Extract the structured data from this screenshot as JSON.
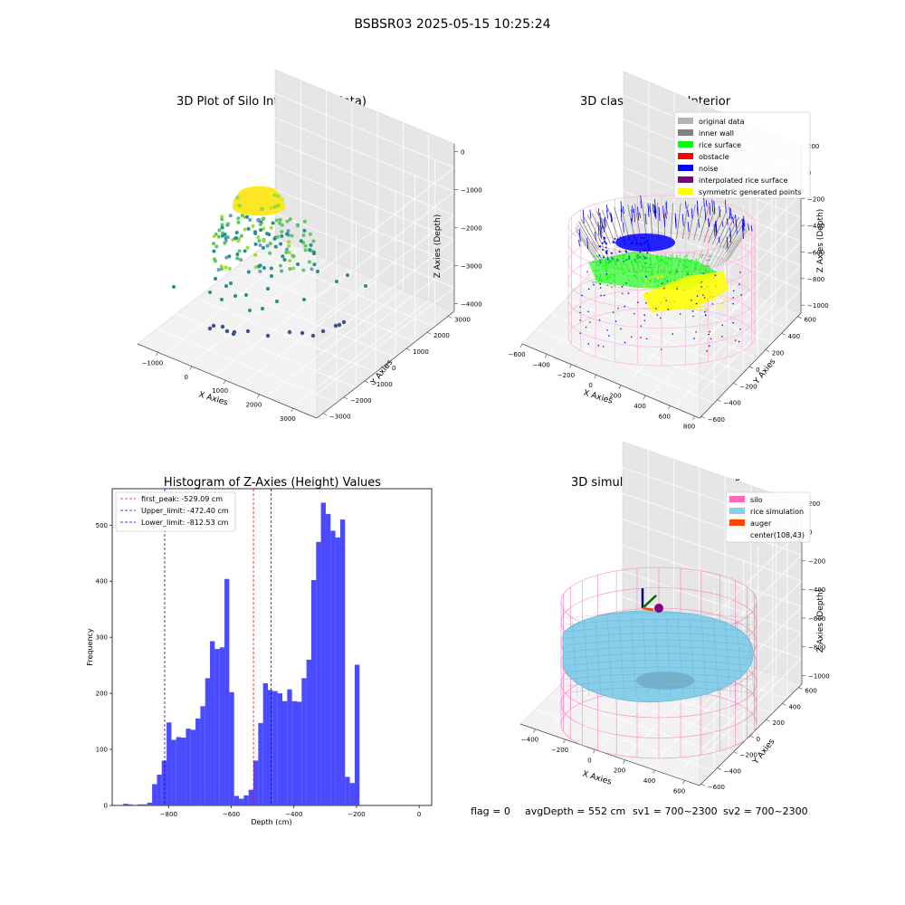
{
  "figure": {
    "suptitle": "BSBSR03 2025-05-15 10:25:24",
    "footer": {
      "flag": "flag = 0",
      "avg_depth": "avgDepth = 552 cm",
      "sv1": "sv1 = 700~2300",
      "sv2": "sv2 = 700~2300"
    }
  },
  "colors": {
    "viridis": [
      "#440154",
      "#3b528b",
      "#21918c",
      "#5ec962",
      "#a0da39",
      "#fde725"
    ],
    "original": "#b3b3b3",
    "inner_wall": "#808080",
    "rice_surface": "#00ff00",
    "obstacle": "#ff0000",
    "noise": "#0000ff",
    "interp": "#800080",
    "symmetric": "#ffff00",
    "silo": "#ff69b4",
    "rice_sim": "#87ceeb",
    "auger": "#ff4500",
    "hist_bar": "#4a4aff"
  },
  "chart_data": [
    {
      "type": "scatter3d",
      "title": "3D Plot of Silo Interior(row data)",
      "xlabel": "X Axies",
      "ylabel": "Y Axies",
      "zlabel": "Z Axies (Depth)",
      "xticks": [
        "−1000",
        "0",
        "1000",
        "2000",
        "3000"
      ],
      "yticks": [
        "−3000",
        "−2000",
        "−1000",
        "0",
        "1000",
        "2000",
        "3000"
      ],
      "zticks": [
        "0",
        "−1000",
        "−2000",
        "−3000",
        "−4000"
      ],
      "xlim": [
        -1500,
        3300
      ],
      "ylim": [
        -3300,
        3300
      ],
      "zlim": [
        -4600,
        0
      ],
      "colormap": "viridis"
    },
    {
      "type": "scatter3d",
      "title": "3D classify of Silo Interior",
      "xlabel": "X Axies",
      "ylabel": "Y Axies",
      "zlabel": "Z Axies (Depth)",
      "xticks": [
        "−600",
        "−400",
        "−200",
        "0",
        "200",
        "400",
        "600",
        "800"
      ],
      "yticks": [
        "−600",
        "−400",
        "−200",
        "0",
        "200",
        "400",
        "600"
      ],
      "zticks": [
        "200",
        "0",
        "−200",
        "−400",
        "−600",
        "−800",
        "−1000"
      ],
      "xlim": [
        -600,
        800
      ],
      "ylim": [
        -650,
        650
      ],
      "zlim": [
        -1100,
        250
      ],
      "legend": [
        {
          "label": "original data",
          "color": "#b3b3b3"
        },
        {
          "label": "inner wall",
          "color": "#808080"
        },
        {
          "label": "rice surface",
          "color": "#00ff00"
        },
        {
          "label": "obstacle",
          "color": "#ff0000"
        },
        {
          "label": "noise",
          "color": "#0000ff"
        },
        {
          "label": "interpolated rice surface",
          "color": "#800080"
        },
        {
          "label": "symmetric generated points",
          "color": "#ffff00"
        }
      ],
      "legend_position": "top-right"
    },
    {
      "type": "bar",
      "title": "Histogram of Z-Axies (Height) Values",
      "xlabel": "Depth (cm)",
      "ylabel": "Frequency",
      "xlim": [
        -980,
        40
      ],
      "ylim": [
        0,
        565
      ],
      "xticks": [
        -800,
        -600,
        -400,
        -200,
        0
      ],
      "xtick_labels": [
        "−800",
        "−600",
        "−400",
        "−200",
        "0"
      ],
      "yticks": [
        0,
        100,
        200,
        300,
        400,
        500
      ],
      "bin_start": -945,
      "bin_width": 15.4,
      "values": [
        3,
        2,
        0,
        2,
        2,
        5,
        38,
        55,
        80,
        148,
        117,
        122,
        121,
        137,
        135,
        155,
        177,
        227,
        293,
        279,
        282,
        404,
        202,
        17,
        12,
        18,
        28,
        80,
        147,
        218,
        206,
        204,
        200,
        186,
        207,
        186,
        185,
        227,
        260,
        402,
        470,
        540,
        520,
        490,
        478,
        510,
        51,
        40,
        251
      ],
      "vlines": [
        {
          "label": "first_peak: -529.09 cm",
          "x": -529.09,
          "color": "#ff0000"
        },
        {
          "label": "Upper_limit: -472.40 cm",
          "x": -472.4,
          "color": "#0000ff"
        },
        {
          "label": "Lower_limit: -812.53 cm",
          "x": -812.53,
          "color": "#0000ff"
        }
      ],
      "legend_position": "top-left"
    },
    {
      "type": "surface3d",
      "title": "3D simulation of Silo Interior",
      "xlabel": "X Axies",
      "ylabel": "Y Axies",
      "zlabel": "Z Axies (Depth)",
      "xticks": [
        "−400",
        "−200",
        "0",
        "200",
        "400",
        "600"
      ],
      "yticks": [
        "−600",
        "−400",
        "−200",
        "0",
        "200",
        "400",
        "600"
      ],
      "zticks": [
        "200",
        "0",
        "−200",
        "−400",
        "−600",
        "−800",
        "−1000"
      ],
      "xlim": [
        -500,
        750
      ],
      "ylim": [
        -650,
        650
      ],
      "zlim": [
        -1100,
        250
      ],
      "legend": [
        {
          "label": "silo",
          "color": "#ff69b4"
        },
        {
          "label": "rice simulation",
          "color": "#87ceeb"
        },
        {
          "label": "auger",
          "color": "#ff4500"
        },
        {
          "label": "center(108,43)",
          "color": ""
        }
      ],
      "legend_position": "top-right"
    }
  ]
}
